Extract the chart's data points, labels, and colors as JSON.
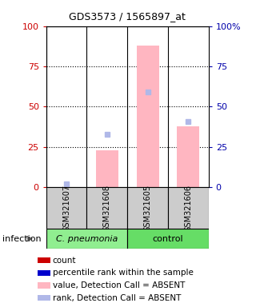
{
  "title": "GDS3573 / 1565897_at",
  "samples": [
    "GSM321607",
    "GSM321608",
    "GSM321605",
    "GSM321606"
  ],
  "ylim": [
    0,
    100
  ],
  "bar_values": [
    0,
    23,
    88,
    38
  ],
  "rank_dots": [
    2,
    33,
    59,
    41
  ],
  "bar_color_absent": "#ffb6c1",
  "rank_dot_color_absent": "#b0b8e8",
  "yticks": [
    0,
    25,
    50,
    75,
    100
  ],
  "sample_bg": "#cccccc",
  "group1_color": "#90ee90",
  "group2_color": "#66dd66",
  "group1_label": "C. pneumonia",
  "group2_label": "control",
  "legend_colors": [
    "#cc0000",
    "#0000cc",
    "#ffb6c1",
    "#b0b8e8"
  ],
  "legend_labels": [
    "count",
    "percentile rank within the sample",
    "value, Detection Call = ABSENT",
    "rank, Detection Call = ABSENT"
  ],
  "infection_label": "infection",
  "left_tick_color": "#cc0000",
  "right_tick_color": "#0000aa",
  "title_fontsize": 9,
  "tick_fontsize": 8,
  "sample_fontsize": 7,
  "group_fontsize": 8,
  "legend_fontsize": 7.5,
  "infection_fontsize": 8
}
